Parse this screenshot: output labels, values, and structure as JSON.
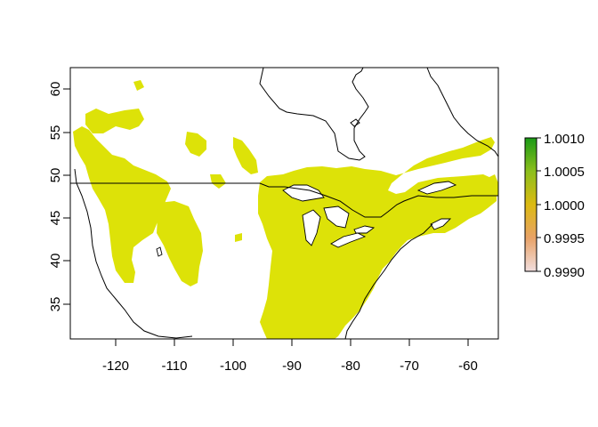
{
  "map": {
    "x_ticks": [
      "-120",
      "-110",
      "-100",
      "-90",
      "-80",
      "-70",
      "-60"
    ],
    "y_ticks": [
      "35",
      "40",
      "45",
      "50",
      "55",
      "60"
    ],
    "land_fill_color": "#dde208",
    "border_color": "#000000"
  },
  "legend": {
    "labels": [
      "1.0010",
      "1.0005",
      "1.0000",
      "0.9995",
      "0.9990"
    ],
    "gradient_colors": [
      "#1a9a16",
      "#8cbf1c",
      "#dcba12",
      "#e8a267",
      "#f1dede"
    ]
  }
}
